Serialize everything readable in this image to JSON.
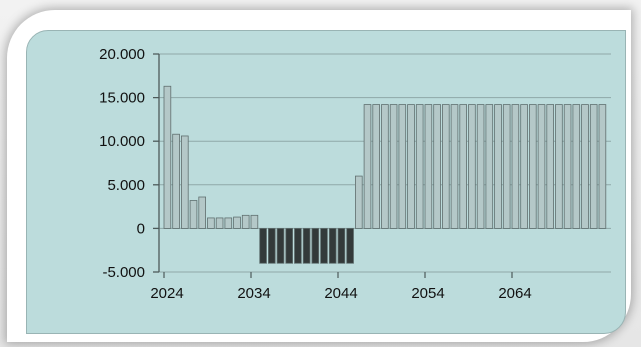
{
  "chart_data": {
    "type": "bar",
    "title": "",
    "xlabel": "",
    "ylabel": "",
    "ylim": [
      -5000,
      20000
    ],
    "y_ticks": [
      {
        "value": 20000,
        "label": "20.000"
      },
      {
        "value": 15000,
        "label": "15.000"
      },
      {
        "value": 10000,
        "label": "10.000"
      },
      {
        "value": 5000,
        "label": "5.000"
      },
      {
        "value": 0,
        "label": "0"
      },
      {
        "value": -5000,
        "label": "-5.000"
      }
    ],
    "x_ticks": [
      {
        "value": 2024,
        "label": "2024"
      },
      {
        "value": 2034,
        "label": "2034"
      },
      {
        "value": 2044,
        "label": "2044"
      },
      {
        "value": 2054,
        "label": "2054"
      },
      {
        "value": 2064,
        "label": "2064"
      }
    ],
    "x": [
      2024,
      2025,
      2026,
      2027,
      2028,
      2029,
      2030,
      2031,
      2032,
      2033,
      2034,
      2035,
      2036,
      2037,
      2038,
      2039,
      2040,
      2041,
      2042,
      2043,
      2044,
      2045,
      2046,
      2047,
      2048,
      2049,
      2050,
      2051,
      2052,
      2053,
      2054,
      2055,
      2056,
      2057,
      2058,
      2059,
      2060,
      2061,
      2062,
      2063,
      2064,
      2065,
      2066,
      2067,
      2068,
      2069,
      2070,
      2071,
      2072,
      2073,
      2074
    ],
    "values": [
      16300,
      10800,
      10600,
      3200,
      3600,
      1200,
      1200,
      1200,
      1300,
      1500,
      1500,
      -4000,
      -4000,
      -4000,
      -4000,
      -4000,
      -4000,
      -4000,
      -4000,
      -4000,
      -4000,
      -4000,
      6000,
      14200,
      14200,
      14200,
      14200,
      14200,
      14200,
      14200,
      14200,
      14200,
      14200,
      14200,
      14200,
      14200,
      14200,
      14200,
      14200,
      14200,
      14200,
      14200,
      14200,
      14200,
      14200,
      14200,
      14200,
      14200,
      14200,
      14200,
      14200
    ],
    "grid": true,
    "colors": {
      "positive_bar": "#b4c8c8",
      "negative_bar": "#333a3a",
      "bar_edge": "#5f6f6f",
      "gridline": "#8fa8a8",
      "axis": "#4d5a5a",
      "plot_background": "#bcdcdc"
    }
  }
}
